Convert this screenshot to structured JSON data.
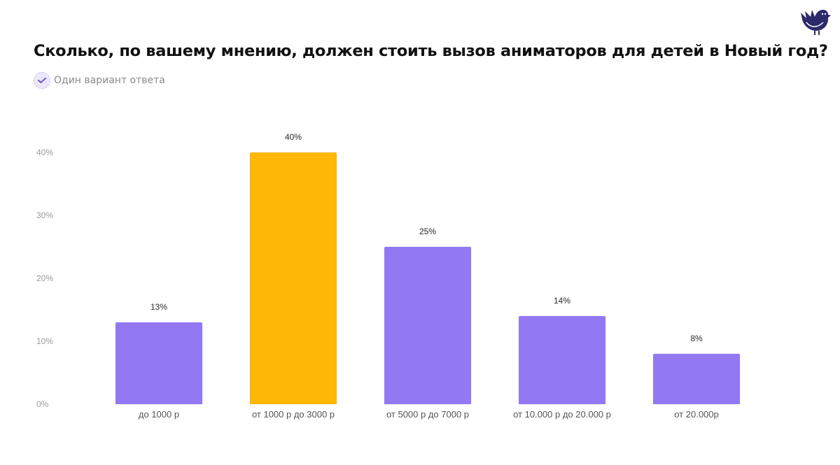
{
  "header": {
    "title": "Сколько, по вашему мнению, должен стоить вызов аниматоров для детей в Новый год?",
    "subtitle": "Один вариант ответа",
    "logo_icon": "bird-icon",
    "subtitle_icon": "check-icon"
  },
  "colors": {
    "default_bar": "#9378f4",
    "highlight_bar": "#fdb706",
    "logo": "#2c2a6b",
    "axis_text": "#9a9a9a"
  },
  "chart_data": {
    "type": "bar",
    "title": "Сколько, по вашему мнению, должен стоить вызов аниматоров для детей в Новый год?",
    "subtitle": "Один вариант ответа",
    "xlabel": "",
    "ylabel": "",
    "categories": [
      "до 1000 р",
      "от 1000 р до 3000 р",
      "от 5000 р до 7000 р",
      "от 10.000 р до 20.000 р",
      "от 20.000р"
    ],
    "values": [
      13,
      40,
      25,
      14,
      8
    ],
    "value_labels": [
      "13%",
      "40%",
      "25%",
      "14%",
      "8%"
    ],
    "highlight_index": 1,
    "ylim": [
      0,
      40
    ],
    "yticks": [
      "0%",
      "10%",
      "20%",
      "30%",
      "40%"
    ],
    "grid": false,
    "legend": null
  }
}
